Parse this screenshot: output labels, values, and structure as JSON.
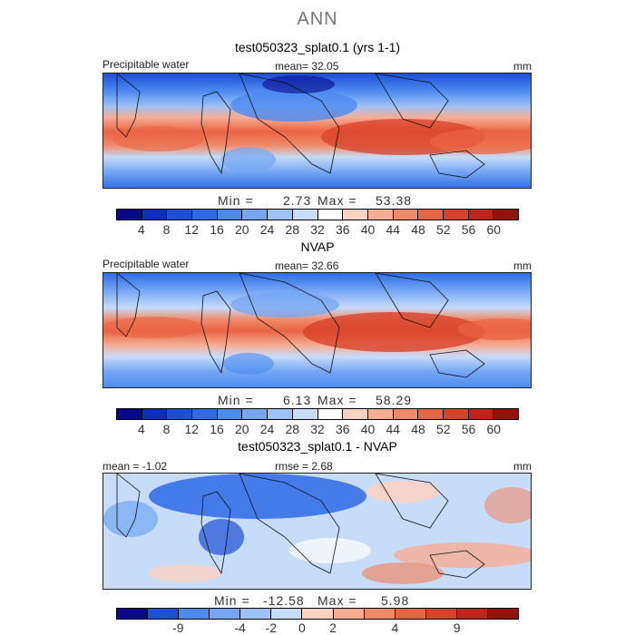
{
  "figure": {
    "title": "ANN"
  },
  "panels": [
    {
      "title": "test050323_splat0.1 (yrs 1-1)",
      "left_label": "Precipitable water",
      "center_label": "mean=  32.05",
      "right_label": "mm",
      "min_label": "Min =",
      "min_value": "2.73",
      "max_label": "Max =",
      "max_value": "53.38"
    },
    {
      "title": "NVAP",
      "left_label": "Precipitable water",
      "center_label": "mean=  32.66",
      "right_label": "mm",
      "min_label": "Min =",
      "min_value": "6.13",
      "max_label": "Max =",
      "max_value": "58.29"
    },
    {
      "title": "test050323_splat0.1 - NVAP",
      "left_label": "mean =  -1.02",
      "center_label": "rmse =    2.68",
      "right_label": "mm",
      "min_label": "Min =",
      "min_value": "-12.58",
      "max_label": "Max =",
      "max_value": "5.98"
    }
  ],
  "colorbars": {
    "abs_ticks": [
      "4",
      "8",
      "12",
      "16",
      "20",
      "24",
      "28",
      "32",
      "36",
      "40",
      "44",
      "48",
      "52",
      "56",
      "60"
    ],
    "diff_ticks": [
      "-9",
      "-4",
      "-2",
      "0",
      "2",
      "4",
      "9"
    ],
    "colors": [
      "#08088c",
      "#0a2fbf",
      "#1a4fd6",
      "#2e6ae6",
      "#4c8af0",
      "#74a6f4",
      "#9cc2f7",
      "#c6dcf8",
      "#ffffff",
      "#f9d2c2",
      "#f6ad94",
      "#f08a6a",
      "#e96443",
      "#d8422a",
      "#c0231a",
      "#96100c"
    ]
  },
  "chart_data": [
    {
      "type": "heatmap",
      "title": "test050323_splat0.1 (yrs 1-1)",
      "variable": "Precipitable water",
      "units": "mm",
      "mean": 32.05,
      "min": 2.73,
      "max": 53.38,
      "contour_levels": [
        4,
        8,
        12,
        16,
        20,
        24,
        28,
        32,
        36,
        40,
        44,
        48,
        52,
        56,
        60
      ],
      "domain": "global map, moist tropical belt (>40 mm) near equator, dry high latitudes"
    },
    {
      "type": "heatmap",
      "title": "NVAP",
      "variable": "Precipitable water",
      "units": "mm",
      "mean": 32.66,
      "min": 6.13,
      "max": 58.29,
      "contour_levels": [
        4,
        8,
        12,
        16,
        20,
        24,
        28,
        32,
        36,
        40,
        44,
        48,
        52,
        56,
        60
      ]
    },
    {
      "type": "heatmap",
      "title": "test050323_splat0.1 - NVAP",
      "units": "mm",
      "mean": -1.02,
      "rmse": 2.68,
      "min": -12.58,
      "max": 5.98,
      "contour_levels": [
        -9,
        -4,
        -2,
        0,
        2,
        4,
        9
      ]
    }
  ]
}
